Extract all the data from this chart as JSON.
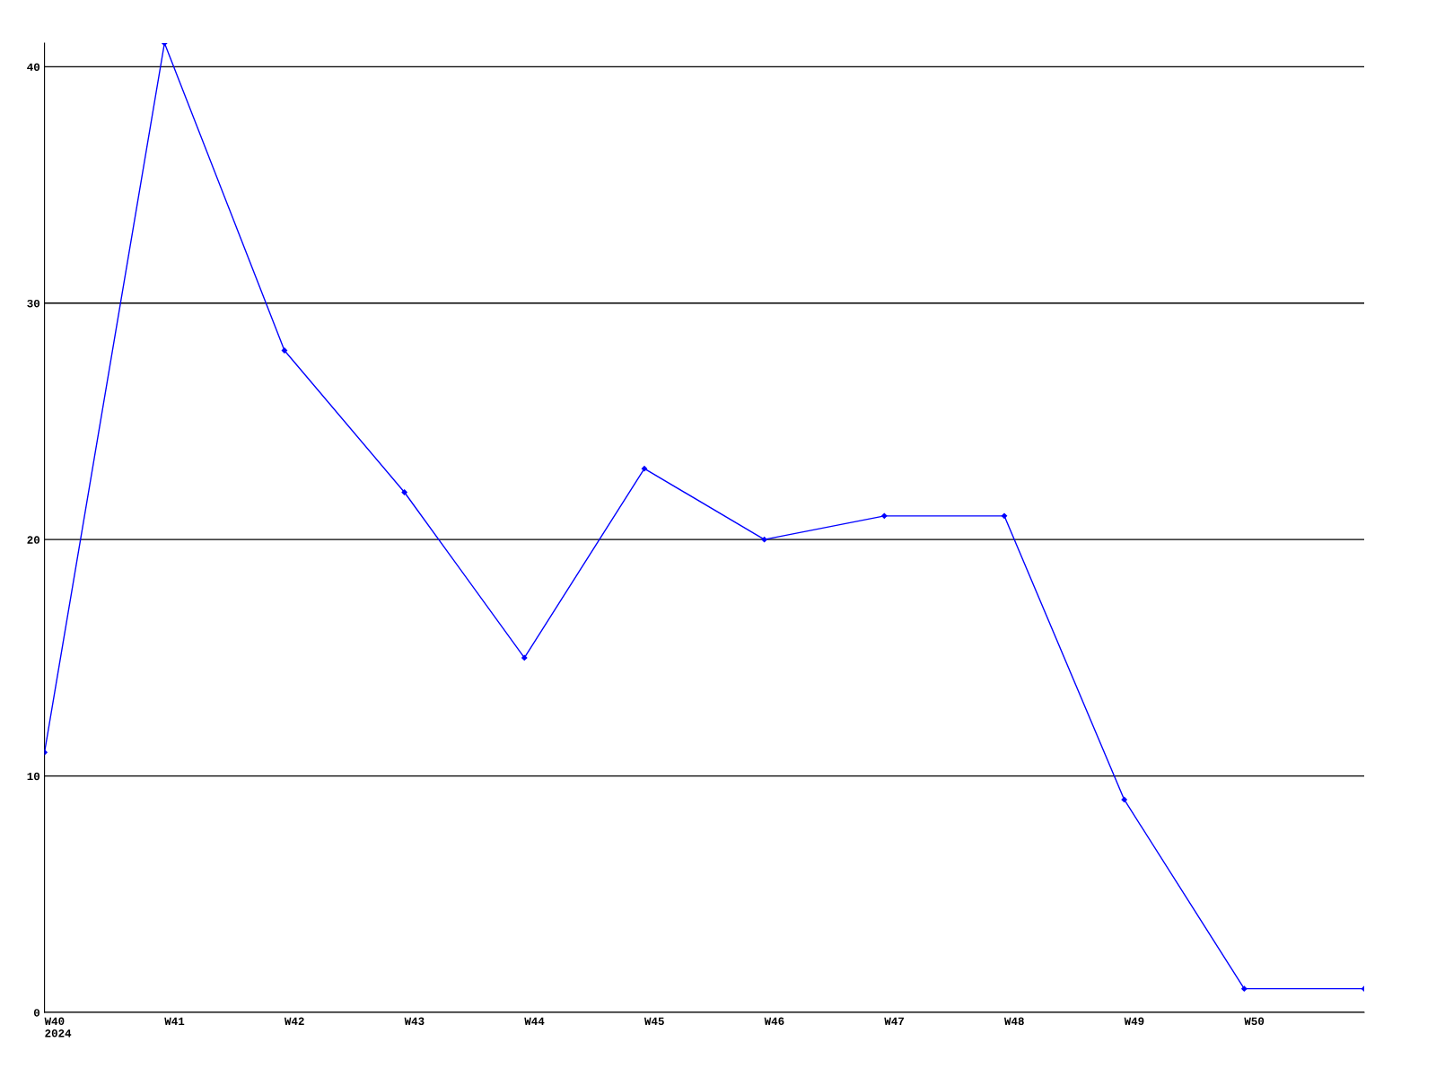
{
  "chart_data": {
    "type": "line",
    "categories": [
      "W40\n2024",
      "W41",
      "W42",
      "W43",
      "W44",
      "W45",
      "W46",
      "W47",
      "W48",
      "W49",
      "W50",
      null
    ],
    "series": [
      {
        "color": "#0000ff",
        "values": [
          11,
          41,
          28,
          22,
          15,
          23,
          20,
          21,
          21,
          9,
          1,
          1
        ]
      }
    ],
    "ylim": [
      0,
      41
    ],
    "yticks": [
      0,
      10,
      20,
      30,
      40
    ],
    "grid": "y",
    "marker": "diamond",
    "line_style": "solid"
  }
}
